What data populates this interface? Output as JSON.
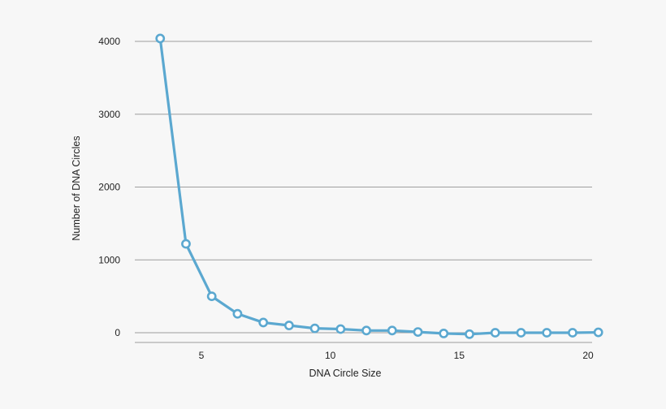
{
  "chart_data": {
    "type": "line",
    "title": "",
    "xlabel": "DNA Circle Size",
    "ylabel": "Number of DNA Circles",
    "xlim": [
      2.6,
      20
    ],
    "ylim": [
      -120,
      4100
    ],
    "x_ticks": [
      5,
      10,
      15,
      20
    ],
    "x_tick_labels": [
      "5",
      "10",
      "15",
      "20"
    ],
    "y_ticks": [
      0,
      1000,
      2000,
      3000,
      4000
    ],
    "y_tick_labels": [
      "0",
      "1000",
      "2000",
      "3000",
      "4000"
    ],
    "grid": "horizontal",
    "legend": "none",
    "line_color": "#5ba8d0",
    "series": [
      {
        "x": [
          3.4,
          4.4,
          5.4,
          6.4,
          7.4,
          8.4,
          9.4,
          10.4,
          11.4,
          12.4,
          13.4,
          14.4,
          15.4,
          16.4,
          17.4,
          18.4,
          19.4,
          20.4
        ],
        "values": [
          4040,
          1220,
          500,
          260,
          140,
          100,
          60,
          50,
          30,
          30,
          10,
          -10,
          -20,
          0,
          0,
          0,
          0,
          5
        ]
      }
    ]
  }
}
